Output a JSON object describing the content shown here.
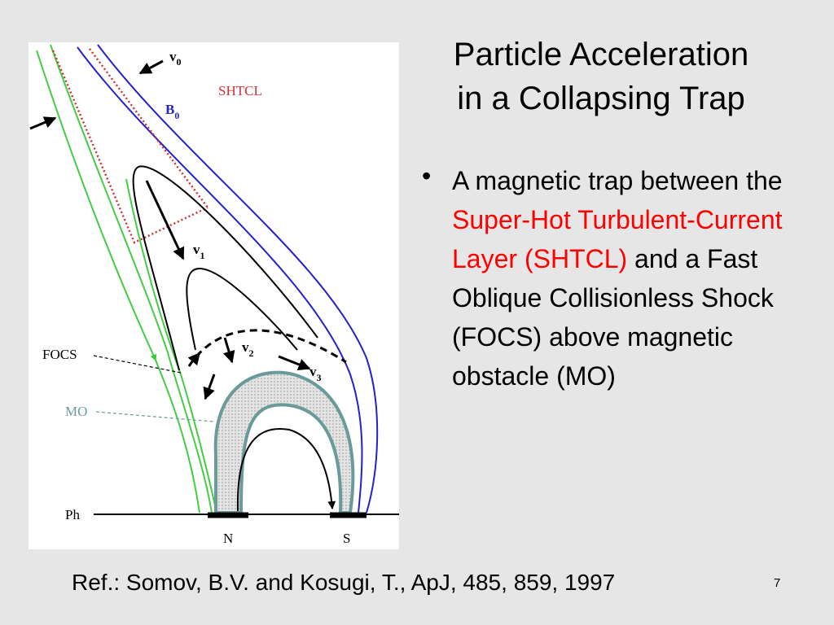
{
  "title": [
    "Particle Acceleration",
    "in a Collapsing Trap"
  ],
  "bullet": [
    {
      "text": "A magnetic trap between the"
    },
    {
      "text": "Super-Hot Turbulent-Current Layer (SHTCL)",
      "color": "#ff0000"
    },
    {
      "text": "and a Fast Oblique Collisionless Shock (FOCS) above magnetic obstacle (MO)"
    }
  ],
  "figure": {
    "labels": [
      {
        "text": "v",
        "sub": "0"
      },
      {
        "text": "SHTCL"
      },
      {
        "text": "B",
        "sub": "0"
      },
      {
        "text": "v",
        "sub": "1"
      },
      {
        "text": "FOCS"
      },
      {
        "text": "v",
        "sub": "2"
      },
      {
        "text": "v",
        "sub": "3"
      },
      {
        "text": "MO"
      },
      {
        "text": "Ph"
      },
      {
        "text": "N"
      },
      {
        "text": "S"
      }
    ]
  },
  "reference": "Ref.: Somov, B.V. and Kosugi, T., ApJ, 485, 859, 1997",
  "page_number": "7"
}
